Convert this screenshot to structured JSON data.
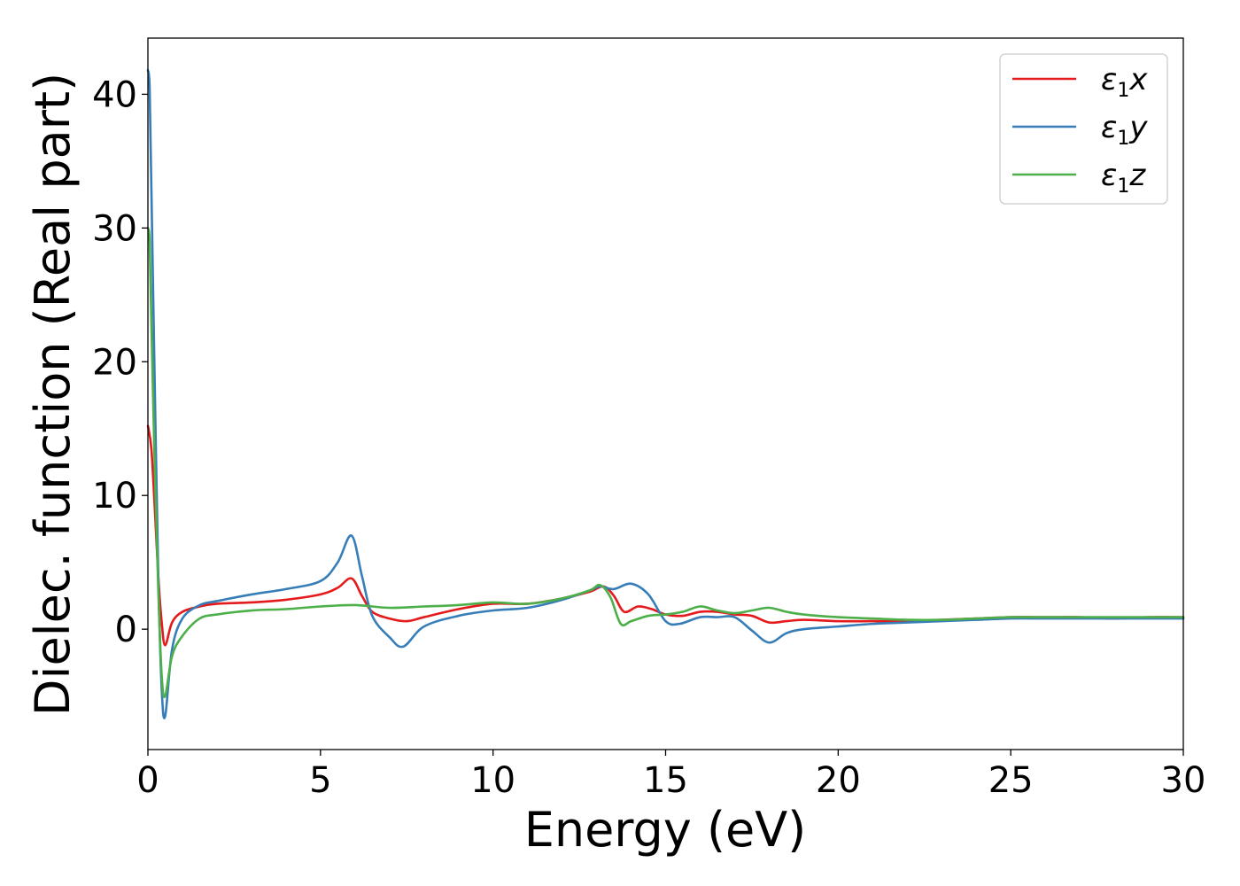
{
  "chart_data": {
    "type": "line",
    "xlabel": "Energy (eV)",
    "ylabel": "Dielec. function (Real part)",
    "xlim": [
      0,
      30
    ],
    "ylim": [
      -9,
      44.2
    ],
    "x_ticks": [
      "0",
      "5",
      "10",
      "15",
      "20",
      "25",
      "30"
    ],
    "y_ticks": [
      "0",
      "10",
      "20",
      "30",
      "40"
    ],
    "x_tick_values": [
      0,
      5,
      10,
      15,
      20,
      25,
      30
    ],
    "y_tick_values": [
      0,
      10,
      20,
      30,
      40
    ],
    "grid": false,
    "legend_position": "top-right",
    "series": [
      {
        "name": "ε1x",
        "legend": {
          "base": "ε",
          "sub": "1",
          "axis": "x"
        },
        "color": "#e41a1c",
        "x": [
          0,
          0.1,
          0.2,
          0.3,
          0.4,
          0.5,
          0.7,
          1.0,
          1.5,
          2.0,
          3.0,
          4.0,
          5.0,
          5.5,
          5.9,
          6.2,
          6.5,
          7.0,
          7.5,
          8.0,
          9.0,
          10.0,
          11.0,
          12.0,
          12.8,
          13.2,
          13.5,
          13.8,
          14.2,
          14.6,
          15.0,
          15.5,
          16.0,
          16.5,
          17.0,
          17.5,
          18.0,
          18.5,
          19.0,
          20.0,
          21.0,
          22.0,
          23.0,
          24.0,
          25.0,
          26.0,
          27.0,
          28.0,
          29.0,
          30.0
        ],
        "y": [
          15.2,
          13.5,
          9.0,
          4.0,
          0.5,
          -1.2,
          0.5,
          1.3,
          1.7,
          1.9,
          2.0,
          2.2,
          2.6,
          3.1,
          3.8,
          2.5,
          1.3,
          0.8,
          0.6,
          0.9,
          1.5,
          1.9,
          1.9,
          2.3,
          2.8,
          3.2,
          2.5,
          1.3,
          1.7,
          1.5,
          1.1,
          1.0,
          1.3,
          1.3,
          1.1,
          1.0,
          0.5,
          0.6,
          0.7,
          0.6,
          0.6,
          0.6,
          0.7,
          0.8,
          0.9,
          0.9,
          0.9,
          0.8,
          0.9,
          0.9
        ]
      },
      {
        "name": "ε1y",
        "legend": {
          "base": "ε",
          "sub": "1",
          "axis": "y"
        },
        "color": "#377eb8",
        "x": [
          0,
          0.05,
          0.1,
          0.2,
          0.3,
          0.4,
          0.5,
          0.7,
          1.0,
          1.5,
          2.0,
          3.0,
          4.0,
          5.0,
          5.5,
          5.9,
          6.2,
          6.5,
          7.0,
          7.4,
          8.0,
          9.0,
          10.0,
          11.0,
          12.0,
          12.8,
          13.1,
          13.5,
          14.0,
          14.5,
          15.0,
          15.4,
          16.0,
          16.5,
          17.0,
          17.5,
          18.0,
          18.5,
          19.0,
          20.0,
          21.0,
          22.0,
          23.0,
          24.0,
          25.0,
          26.0,
          27.0,
          28.0,
          29.0,
          30.0
        ],
        "y": [
          41.8,
          40.5,
          33.0,
          18.0,
          4.0,
          -4.5,
          -6.5,
          -1.5,
          0.8,
          1.8,
          2.1,
          2.6,
          3.0,
          3.6,
          5.0,
          7.0,
          4.0,
          1.0,
          -0.6,
          -1.3,
          0.2,
          1.0,
          1.4,
          1.6,
          2.2,
          2.9,
          3.2,
          3.0,
          3.4,
          2.6,
          0.6,
          0.4,
          0.9,
          0.9,
          0.9,
          -0.1,
          -1.0,
          -0.3,
          0.0,
          0.2,
          0.4,
          0.5,
          0.6,
          0.7,
          0.8,
          0.8,
          0.8,
          0.8,
          0.8,
          0.8
        ]
      },
      {
        "name": "ε1z",
        "legend": {
          "base": "ε",
          "sub": "1",
          "axis": "z"
        },
        "color": "#4daf4a",
        "x": [
          0,
          0.05,
          0.1,
          0.2,
          0.3,
          0.4,
          0.5,
          0.7,
          1.0,
          1.5,
          2.0,
          3.0,
          4.0,
          5.0,
          6.0,
          7.0,
          8.0,
          9.0,
          10.0,
          11.0,
          12.0,
          12.8,
          13.1,
          13.4,
          13.7,
          14.0,
          14.5,
          15.0,
          15.5,
          16.0,
          16.5,
          17.0,
          17.5,
          18.0,
          18.5,
          19.0,
          20.0,
          21.0,
          22.0,
          23.0,
          24.0,
          25.0,
          26.0,
          27.0,
          28.0,
          29.0,
          30.0
        ],
        "y": [
          30.0,
          29.0,
          23.0,
          12.0,
          3.0,
          -3.5,
          -5.0,
          -2.0,
          -0.5,
          0.8,
          1.1,
          1.4,
          1.5,
          1.7,
          1.8,
          1.6,
          1.7,
          1.8,
          2.0,
          1.9,
          2.3,
          2.9,
          3.3,
          2.4,
          0.4,
          0.6,
          1.0,
          1.1,
          1.3,
          1.7,
          1.4,
          1.2,
          1.4,
          1.6,
          1.3,
          1.1,
          0.9,
          0.8,
          0.7,
          0.7,
          0.8,
          0.9,
          0.9,
          0.9,
          0.9,
          0.9,
          0.9
        ]
      }
    ]
  }
}
